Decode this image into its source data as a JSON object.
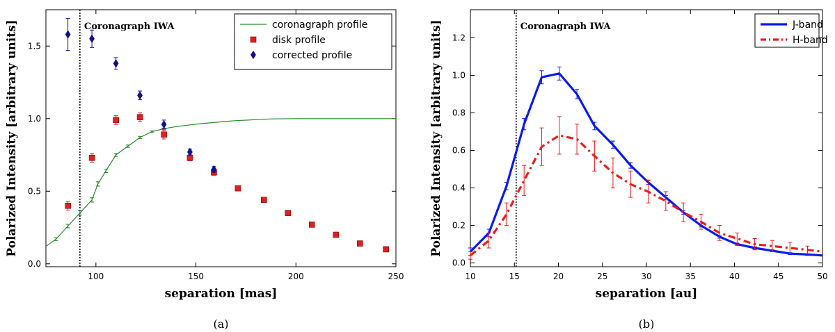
{
  "chart_data": [
    {
      "type": "line",
      "caption": "(a)",
      "xlabel": "separation  [mas]",
      "ylabel": "Polarized Intensity  [arbitrary units]",
      "xlim": [
        75,
        250
      ],
      "ylim": [
        -0.02,
        1.75
      ],
      "xticks": [
        100,
        150,
        200,
        250
      ],
      "yticks": [
        0.0,
        0.5,
        1.0,
        1.5
      ],
      "xtick_labels": [
        "100",
        "150",
        "200",
        "250"
      ],
      "ytick_labels": [
        "0.0",
        "0.5",
        "1.0",
        "1.5"
      ],
      "vline": {
        "x": 92,
        "label": "Coronagraph IWA"
      },
      "legend_position": "top-right",
      "series": [
        {
          "name": "coronagraph profile",
          "kind": "line",
          "color": "#2a8a2a",
          "x": [
            75,
            80,
            86,
            92,
            98,
            101,
            105,
            110,
            116,
            122,
            128,
            134,
            140,
            146,
            152,
            158,
            164,
            170,
            176,
            182,
            188,
            200,
            215,
            230,
            250
          ],
          "y": [
            0.12,
            0.17,
            0.26,
            0.35,
            0.44,
            0.55,
            0.64,
            0.75,
            0.81,
            0.87,
            0.91,
            0.93,
            0.945,
            0.955,
            0.965,
            0.972,
            0.98,
            0.986,
            0.99,
            0.995,
            0.998,
            1.0,
            1.0,
            1.0,
            1.0
          ],
          "err": [
            0,
            0.01,
            0.012,
            0.015,
            0.015,
            0.015,
            0.012,
            0.01,
            0.008,
            0.008,
            0.006,
            0.005,
            0,
            0,
            0,
            0,
            0,
            0,
            0,
            0,
            0,
            0,
            0,
            0,
            0
          ]
        },
        {
          "name": "disk profile",
          "kind": "square",
          "color": "#e02020",
          "x": [
            86,
            98,
            110,
            122,
            134,
            147,
            159,
            171,
            184,
            196,
            208,
            220,
            232,
            245
          ],
          "y": [
            0.4,
            0.73,
            0.99,
            1.01,
            0.89,
            0.73,
            0.63,
            0.52,
            0.44,
            0.35,
            0.27,
            0.2,
            0.14,
            0.1
          ],
          "err": [
            0.03,
            0.03,
            0.03,
            0.03,
            0.03,
            0.02,
            0.02,
            0.015,
            0.015,
            0.01,
            0.01,
            0.01,
            0.01,
            0.01
          ]
        },
        {
          "name": "corrected profile",
          "kind": "diamond",
          "color": "#1010a0",
          "x": [
            86,
            98,
            110,
            122,
            134,
            147,
            159
          ],
          "y": [
            1.58,
            1.55,
            1.38,
            1.16,
            0.96,
            0.77,
            0.65
          ],
          "err": [
            0.11,
            0.06,
            0.04,
            0.03,
            0.03,
            0.02,
            0.02
          ]
        }
      ]
    },
    {
      "type": "line",
      "caption": "(b)",
      "xlabel": "separation  [au]",
      "ylabel": "Polarized Intensity  [arbitrary units]",
      "xlim": [
        10,
        50
      ],
      "ylim": [
        -0.02,
        1.35
      ],
      "xticks": [
        10,
        15,
        20,
        25,
        30,
        35,
        40,
        45,
        50
      ],
      "yticks": [
        0.0,
        0.2,
        0.4,
        0.6,
        0.8,
        1.0,
        1.2
      ],
      "xtick_labels": [
        "10",
        "15",
        "20",
        "25",
        "30",
        "35",
        "40",
        "45",
        "50"
      ],
      "ytick_labels": [
        "0.0",
        "0.2",
        "0.4",
        "0.6",
        "0.8",
        "1.0",
        "1.2"
      ],
      "vline": {
        "x": 15.2,
        "label": "Coronagraph IWA"
      },
      "legend_position": "top-right",
      "series": [
        {
          "name": "J-band",
          "kind": "solid",
          "color": "#0a1af0",
          "x": [
            10,
            12.1,
            14.1,
            16.1,
            18.1,
            20.1,
            22.1,
            24.1,
            26.2,
            28.2,
            30.2,
            32.2,
            34.2,
            36.2,
            38.3,
            40.3,
            42.3,
            44.3,
            46.3,
            48.3,
            50
          ],
          "y": [
            0.06,
            0.16,
            0.41,
            0.74,
            0.99,
            1.01,
            0.9,
            0.73,
            0.63,
            0.52,
            0.43,
            0.35,
            0.27,
            0.2,
            0.14,
            0.1,
            0.08,
            0.065,
            0.05,
            0.045,
            0.04
          ],
          "err": [
            0.02,
            0.02,
            0.02,
            0.03,
            0.035,
            0.035,
            0.025,
            0.02,
            0.02,
            0.015,
            0.012,
            0.01,
            0.01,
            0.008,
            0.008,
            0.006,
            0.006,
            0.005,
            0.005,
            0.005,
            0
          ]
        },
        {
          "name": "H-band",
          "kind": "dashdot",
          "color": "#ee1c1c",
          "x": [
            10,
            12.1,
            14.1,
            16.1,
            18.1,
            20.1,
            22.1,
            24.1,
            26.2,
            28.2,
            30.2,
            32.2,
            34.2,
            36.2,
            38.3,
            40.3,
            42.3,
            44.3,
            46.3,
            48.3,
            50
          ],
          "y": [
            0.04,
            0.12,
            0.26,
            0.44,
            0.62,
            0.68,
            0.66,
            0.57,
            0.48,
            0.42,
            0.38,
            0.33,
            0.27,
            0.22,
            0.16,
            0.13,
            0.1,
            0.09,
            0.08,
            0.07,
            0.06
          ],
          "err": [
            0.02,
            0.04,
            0.06,
            0.08,
            0.1,
            0.1,
            0.08,
            0.08,
            0.08,
            0.07,
            0.06,
            0.05,
            0.05,
            0.04,
            0.04,
            0.03,
            0.03,
            0.03,
            0.03,
            0.02,
            0
          ]
        }
      ]
    }
  ]
}
